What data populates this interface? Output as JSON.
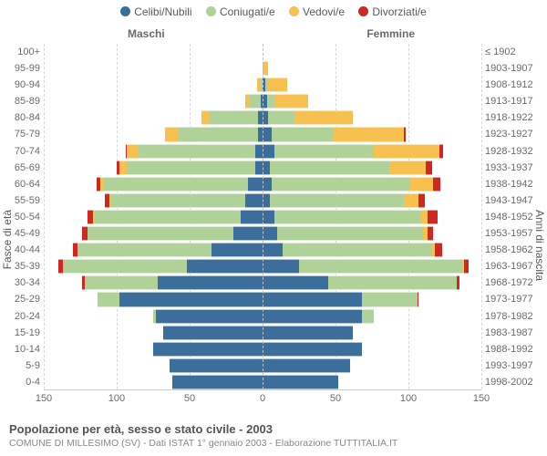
{
  "legend": {
    "celibi": "Celibi/Nubili",
    "coniugati": "Coniugati/e",
    "vedovi": "Vedovi/e",
    "divorziati": "Divorziati/e"
  },
  "colors": {
    "celibi": "#3b6e9a",
    "coniugati": "#b0d198",
    "vedovi": "#f7c151",
    "divorziati": "#cf2721",
    "grid": "#d8d8d8",
    "background": "#ffffff",
    "text": "#5b5b5b"
  },
  "gender": {
    "male": "Maschi",
    "female": "Femmine"
  },
  "y_left_title": "Fasce di età",
  "y_right_title": "Anni di nascita",
  "x_ticks": [
    150,
    100,
    50,
    0,
    50,
    100,
    150
  ],
  "x_max": 150,
  "footer": {
    "title": "Popolazione per età, sesso e stato civile - 2003",
    "subtitle": "COMUNE DI MILLESIMO (SV) - Dati ISTAT 1° gennaio 2003 - Elaborazione TUTTITALIA.IT"
  },
  "pyramid": {
    "type": "population-pyramid",
    "rows": [
      {
        "age": "100+",
        "year": "≤ 1902",
        "m": {
          "c": 0,
          "g": 0,
          "v": 0,
          "d": 0
        },
        "f": {
          "c": 0,
          "g": 0,
          "v": 0,
          "d": 0
        }
      },
      {
        "age": "95-99",
        "year": "1903-1907",
        "m": {
          "c": 0,
          "g": 0,
          "v": 0,
          "d": 0
        },
        "f": {
          "c": 0,
          "g": 0,
          "v": 4,
          "d": 0
        }
      },
      {
        "age": "90-94",
        "year": "1908-1912",
        "m": {
          "c": 0,
          "g": 2,
          "v": 2,
          "d": 0
        },
        "f": {
          "c": 2,
          "g": 2,
          "v": 13,
          "d": 0
        }
      },
      {
        "age": "85-89",
        "year": "1913-1917",
        "m": {
          "c": 1,
          "g": 8,
          "v": 3,
          "d": 0
        },
        "f": {
          "c": 3,
          "g": 5,
          "v": 23,
          "d": 0
        }
      },
      {
        "age": "80-84",
        "year": "1918-1922",
        "m": {
          "c": 3,
          "g": 33,
          "v": 6,
          "d": 0
        },
        "f": {
          "c": 4,
          "g": 18,
          "v": 40,
          "d": 0
        }
      },
      {
        "age": "75-79",
        "year": "1923-1927",
        "m": {
          "c": 3,
          "g": 55,
          "v": 9,
          "d": 0
        },
        "f": {
          "c": 6,
          "g": 43,
          "v": 48,
          "d": 1
        }
      },
      {
        "age": "70-74",
        "year": "1928-1932",
        "m": {
          "c": 5,
          "g": 80,
          "v": 8,
          "d": 1
        },
        "f": {
          "c": 8,
          "g": 68,
          "v": 45,
          "d": 3
        }
      },
      {
        "age": "65-69",
        "year": "1933-1937",
        "m": {
          "c": 5,
          "g": 88,
          "v": 5,
          "d": 2
        },
        "f": {
          "c": 5,
          "g": 82,
          "v": 25,
          "d": 4
        }
      },
      {
        "age": "60-64",
        "year": "1938-1942",
        "m": {
          "c": 10,
          "g": 99,
          "v": 2,
          "d": 3
        },
        "f": {
          "c": 6,
          "g": 95,
          "v": 16,
          "d": 5
        }
      },
      {
        "age": "55-59",
        "year": "1943-1947",
        "m": {
          "c": 12,
          "g": 92,
          "v": 1,
          "d": 3
        },
        "f": {
          "c": 5,
          "g": 92,
          "v": 10,
          "d": 4
        }
      },
      {
        "age": "50-54",
        "year": "1948-1952",
        "m": {
          "c": 15,
          "g": 100,
          "v": 1,
          "d": 4
        },
        "f": {
          "c": 8,
          "g": 100,
          "v": 5,
          "d": 7
        }
      },
      {
        "age": "45-49",
        "year": "1953-1957",
        "m": {
          "c": 20,
          "g": 100,
          "v": 0,
          "d": 4
        },
        "f": {
          "c": 10,
          "g": 100,
          "v": 3,
          "d": 4
        }
      },
      {
        "age": "40-44",
        "year": "1958-1962",
        "m": {
          "c": 35,
          "g": 92,
          "v": 0,
          "d": 3
        },
        "f": {
          "c": 14,
          "g": 102,
          "v": 2,
          "d": 5
        }
      },
      {
        "age": "35-39",
        "year": "1963-1967",
        "m": {
          "c": 52,
          "g": 85,
          "v": 0,
          "d": 3
        },
        "f": {
          "c": 25,
          "g": 112,
          "v": 1,
          "d": 3
        }
      },
      {
        "age": "30-34",
        "year": "1968-1972",
        "m": {
          "c": 72,
          "g": 50,
          "v": 0,
          "d": 2
        },
        "f": {
          "c": 45,
          "g": 88,
          "v": 0,
          "d": 2
        }
      },
      {
        "age": "25-29",
        "year": "1973-1977",
        "m": {
          "c": 98,
          "g": 15,
          "v": 0,
          "d": 0
        },
        "f": {
          "c": 68,
          "g": 38,
          "v": 0,
          "d": 1
        }
      },
      {
        "age": "20-24",
        "year": "1978-1982",
        "m": {
          "c": 73,
          "g": 2,
          "v": 0,
          "d": 0
        },
        "f": {
          "c": 68,
          "g": 8,
          "v": 0,
          "d": 0
        }
      },
      {
        "age": "15-19",
        "year": "1983-1987",
        "m": {
          "c": 68,
          "g": 0,
          "v": 0,
          "d": 0
        },
        "f": {
          "c": 62,
          "g": 0,
          "v": 0,
          "d": 0
        }
      },
      {
        "age": "10-14",
        "year": "1988-1992",
        "m": {
          "c": 75,
          "g": 0,
          "v": 0,
          "d": 0
        },
        "f": {
          "c": 68,
          "g": 0,
          "v": 0,
          "d": 0
        }
      },
      {
        "age": "5-9",
        "year": "1993-1997",
        "m": {
          "c": 64,
          "g": 0,
          "v": 0,
          "d": 0
        },
        "f": {
          "c": 60,
          "g": 0,
          "v": 0,
          "d": 0
        }
      },
      {
        "age": "0-4",
        "year": "1998-2002",
        "m": {
          "c": 62,
          "g": 0,
          "v": 0,
          "d": 0
        },
        "f": {
          "c": 52,
          "g": 0,
          "v": 0,
          "d": 0
        }
      }
    ]
  }
}
